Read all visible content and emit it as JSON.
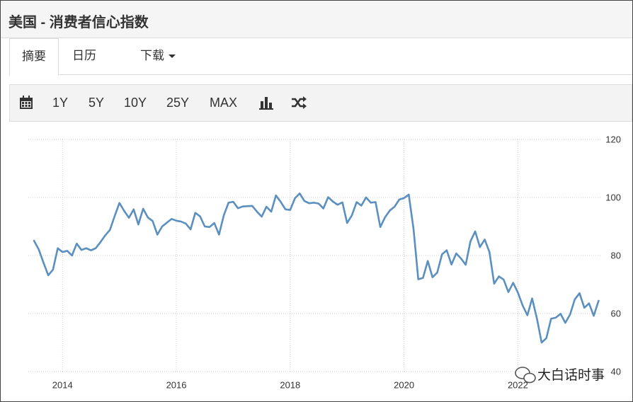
{
  "header": {
    "title": "美国 - 消费者信心指数"
  },
  "tabs": [
    "摘要",
    "日历",
    "下载"
  ],
  "toolbar": [
    "1Y",
    "5Y",
    "10Y",
    "25Y",
    "MAX"
  ],
  "watermark": "大白话时事",
  "chart_data": {
    "type": "line",
    "color": "#5a8fc0",
    "grid": true,
    "y_axis_side": "right",
    "xlim": [
      2013.4,
      2023.45
    ],
    "xticks": [
      2014,
      2016,
      2018,
      2020,
      2022
    ],
    "ylim": [
      40,
      120
    ],
    "yticks": [
      40,
      60,
      80,
      100,
      120
    ],
    "x": [
      2013.5,
      2013.583,
      2013.667,
      2013.75,
      2013.833,
      2013.917,
      2014,
      2014.083,
      2014.167,
      2014.25,
      2014.333,
      2014.417,
      2014.5,
      2014.583,
      2014.667,
      2014.75,
      2014.833,
      2014.917,
      2015,
      2015.083,
      2015.167,
      2015.25,
      2015.333,
      2015.417,
      2015.5,
      2015.583,
      2015.667,
      2015.75,
      2015.833,
      2015.917,
      2016,
      2016.083,
      2016.167,
      2016.25,
      2016.333,
      2016.417,
      2016.5,
      2016.583,
      2016.667,
      2016.75,
      2016.833,
      2016.917,
      2017,
      2017.083,
      2017.167,
      2017.25,
      2017.333,
      2017.417,
      2017.5,
      2017.583,
      2017.667,
      2017.75,
      2017.833,
      2017.917,
      2018,
      2018.083,
      2018.167,
      2018.25,
      2018.333,
      2018.417,
      2018.5,
      2018.583,
      2018.667,
      2018.75,
      2018.833,
      2018.917,
      2019,
      2019.083,
      2019.167,
      2019.25,
      2019.333,
      2019.417,
      2019.5,
      2019.583,
      2019.667,
      2019.75,
      2019.833,
      2019.917,
      2020,
      2020.083,
      2020.167,
      2020.25,
      2020.333,
      2020.417,
      2020.5,
      2020.583,
      2020.667,
      2020.75,
      2020.833,
      2020.917,
      2021,
      2021.083,
      2021.167,
      2021.25,
      2021.333,
      2021.417,
      2021.5,
      2021.583,
      2021.667,
      2021.75,
      2021.833,
      2021.917,
      2022,
      2022.083,
      2022.167,
      2022.25,
      2022.333,
      2022.417,
      2022.5,
      2022.583,
      2022.667,
      2022.75,
      2022.833,
      2022.917,
      2023,
      2023.083,
      2023.167,
      2023.25,
      2023.333,
      2023.417
    ],
    "values": [
      85.1,
      82.1,
      77.5,
      73.2,
      75.1,
      82.5,
      81.2,
      81.6,
      80.0,
      84.1,
      81.9,
      82.5,
      81.8,
      82.5,
      84.6,
      86.9,
      88.8,
      93.6,
      98.1,
      95.4,
      93.0,
      95.9,
      90.7,
      96.1,
      93.1,
      91.9,
      87.2,
      90.0,
      91.3,
      92.6,
      92.0,
      91.7,
      91.0,
      89.0,
      94.7,
      93.5,
      90.0,
      89.8,
      91.2,
      87.2,
      93.8,
      98.2,
      98.5,
      96.3,
      96.9,
      97.0,
      97.1,
      95.1,
      93.4,
      96.8,
      95.1,
      100.7,
      98.5,
      95.9,
      95.7,
      99.7,
      101.4,
      98.8,
      98.0,
      98.2,
      97.9,
      96.2,
      100.1,
      98.6,
      97.5,
      98.3,
      91.2,
      93.8,
      98.4,
      97.2,
      100.0,
      98.2,
      98.4,
      89.8,
      93.2,
      95.5,
      96.8,
      99.3,
      99.8,
      101.0,
      89.1,
      71.8,
      72.3,
      78.1,
      72.5,
      74.1,
      80.4,
      81.8,
      76.9,
      80.7,
      79.0,
      76.8,
      84.9,
      88.3,
      82.9,
      85.5,
      81.2,
      70.3,
      72.8,
      71.7,
      67.4,
      70.6,
      67.2,
      62.8,
      59.4,
      65.2,
      58.4,
      50.0,
      51.5,
      58.2,
      58.6,
      59.9,
      56.8,
      59.7,
      64.9,
      67.0,
      62.0,
      63.5,
      59.2,
      64.4
    ]
  }
}
